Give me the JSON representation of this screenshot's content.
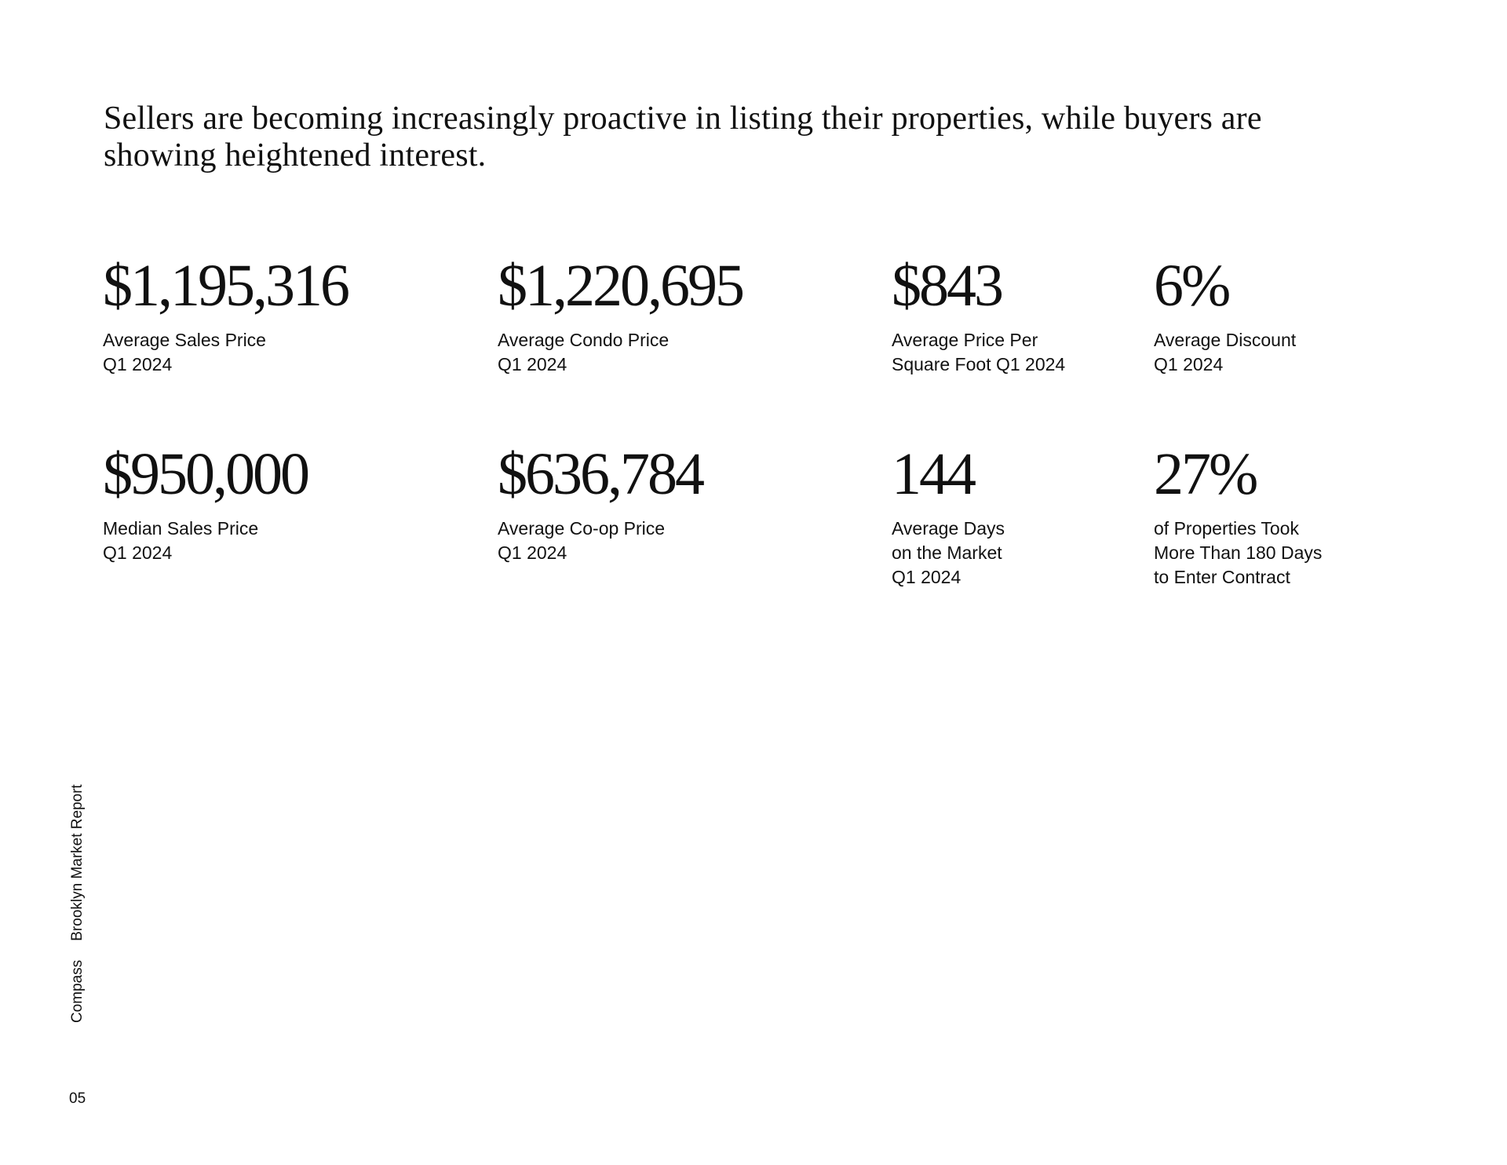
{
  "headline": {
    "line1": "Sellers are becoming increasingly proactive in listing their properties, while buyers are",
    "line2": "showing heightened interest."
  },
  "stats": [
    {
      "value": "$1,195,316",
      "label": [
        "Average Sales Price",
        "Q1 2024"
      ]
    },
    {
      "value": "$1,220,695",
      "label": [
        "Average Condo Price",
        "Q1 2024"
      ]
    },
    {
      "value": "$843",
      "label": [
        "Average Price Per",
        "Square Foot Q1 2024"
      ]
    },
    {
      "value": "6%",
      "label": [
        "Average Discount",
        "Q1 2024"
      ]
    },
    {
      "value": "$950,000",
      "label": [
        "Median Sales Price",
        "Q1 2024"
      ]
    },
    {
      "value": "$636,784",
      "label": [
        "Average Co-op Price",
        "Q1 2024"
      ]
    },
    {
      "value": "144",
      "label": [
        "Average Days",
        "on the Market",
        "Q1 2024"
      ]
    },
    {
      "value": "27%",
      "label": [
        "of Properties Took",
        "More Than 180 Days",
        "to Enter Contract"
      ]
    }
  ],
  "footer": {
    "brand": "Compass",
    "report_name": "Brooklyn Market Report",
    "page_number": "05"
  }
}
